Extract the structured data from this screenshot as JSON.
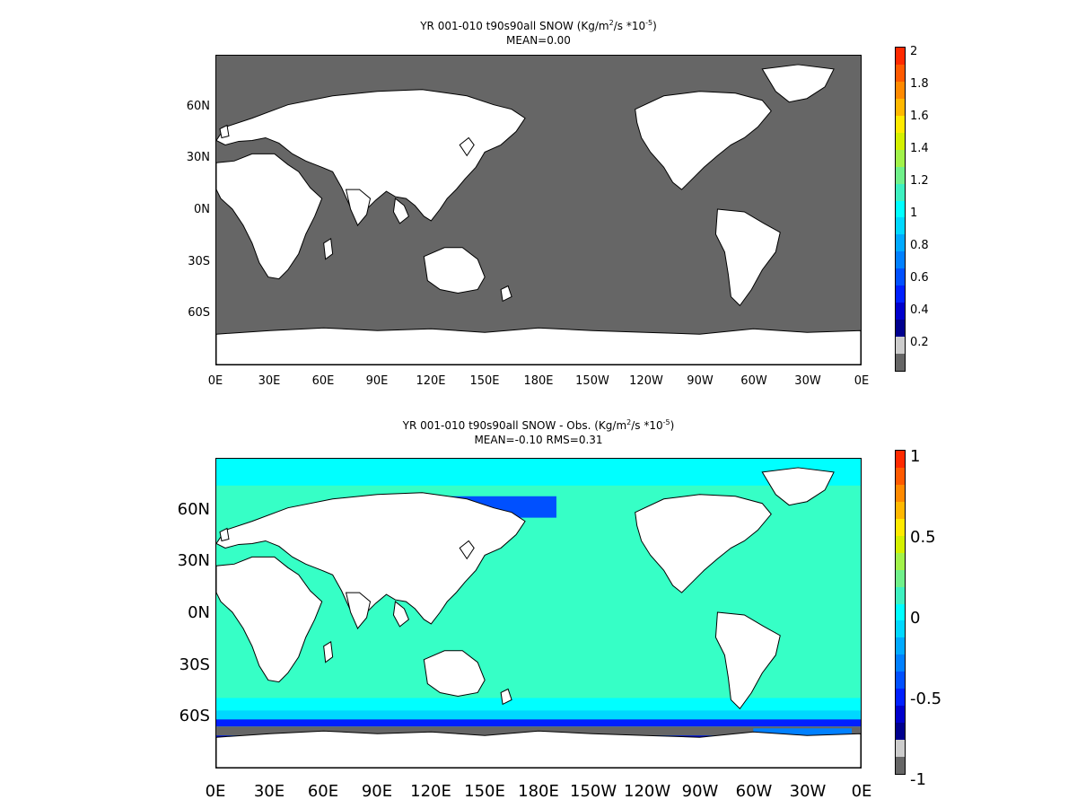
{
  "panels": [
    {
      "title_main": "YR 001-010 t90s90all SNOW (Kg/m",
      "title_sup1": "2",
      "title_mid": "/s   *10",
      "title_sup2": "-5",
      "title_end": ")",
      "subtitle": "MEAN=0.00",
      "ocean_color": "#666666",
      "colorbar": {
        "labels": [
          "2",
          "1.8",
          "1.6",
          "1.4",
          "1.2",
          "1",
          "0.8",
          "0.6",
          "0.4",
          "0.2"
        ],
        "colors": [
          "#ff2a00",
          "#ff5a00",
          "#ff8a00",
          "#ffb800",
          "#ffea00",
          "#d4f000",
          "#a2f24a",
          "#70f08a",
          "#3ef0c0",
          "#00ffff",
          "#00d8ff",
          "#00aaff",
          "#0080ff",
          "#0050ff",
          "#0020ff",
          "#0000cc",
          "#00008e",
          "#cccccc",
          "#666666"
        ]
      }
    },
    {
      "title_main": "YR 001-010 t90s90all SNOW - Obs. (Kg/m",
      "title_sup1": "2",
      "title_mid": "/s *10",
      "title_sup2": "-5",
      "title_end": ")",
      "subtitle": "MEAN=-0.10   RMS=0.31",
      "ocean_color": "#36ffc6",
      "colorbar": {
        "labels": [
          "1",
          "0.5",
          "0",
          "-0.5",
          "-1"
        ],
        "colors": [
          "#ff2a00",
          "#ff5a00",
          "#ff8a00",
          "#ffb800",
          "#ffea00",
          "#d4f000",
          "#a2f24a",
          "#70f08a",
          "#3ef0c0",
          "#00ffff",
          "#00d8ff",
          "#00aaff",
          "#0080ff",
          "#0050ff",
          "#0020ff",
          "#0000cc",
          "#00008e",
          "#cccccc",
          "#666666"
        ]
      }
    }
  ],
  "lat_labels": [
    "60N",
    "30N",
    "0N",
    "30S",
    "60S"
  ],
  "lon_labels": [
    "0E",
    "30E",
    "60E",
    "90E",
    "120E",
    "150E",
    "180E",
    "150W",
    "120W",
    "90W",
    "60W",
    "30W",
    "0E"
  ]
}
